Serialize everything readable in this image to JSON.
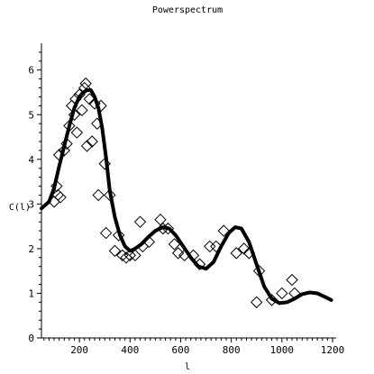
{
  "chart_data": {
    "type": "scatter",
    "title": "Powerspectrum",
    "xlabel": "l",
    "ylabel": "C(l)",
    "xlim": [
      50,
      1200
    ],
    "ylim": [
      0,
      6.6
    ],
    "x_ticks": [
      200,
      400,
      600,
      800,
      1000,
      1200
    ],
    "y_ticks": [
      0,
      1,
      2,
      3,
      4,
      5,
      6
    ],
    "grid": false,
    "legend": "none",
    "series": [
      {
        "kind": "points",
        "marker": "diamond",
        "points": [
          [
            100,
            3.05
          ],
          [
            110,
            3.4
          ],
          [
            115,
            3.2
          ],
          [
            120,
            4.1
          ],
          [
            125,
            3.15
          ],
          [
            140,
            4.2
          ],
          [
            150,
            4.35
          ],
          [
            160,
            4.75
          ],
          [
            170,
            5.2
          ],
          [
            180,
            5.0
          ],
          [
            185,
            5.35
          ],
          [
            190,
            4.6
          ],
          [
            200,
            5.45
          ],
          [
            210,
            5.1
          ],
          [
            220,
            5.6
          ],
          [
            225,
            5.7
          ],
          [
            230,
            4.3
          ],
          [
            240,
            5.35
          ],
          [
            250,
            4.4
          ],
          [
            260,
            5.25
          ],
          [
            270,
            4.8
          ],
          [
            275,
            3.2
          ],
          [
            285,
            5.2
          ],
          [
            300,
            3.9
          ],
          [
            305,
            2.35
          ],
          [
            320,
            3.2
          ],
          [
            340,
            1.95
          ],
          [
            355,
            2.3
          ],
          [
            370,
            1.85
          ],
          [
            385,
            1.8
          ],
          [
            400,
            1.85
          ],
          [
            420,
            1.85
          ],
          [
            440,
            2.6
          ],
          [
            450,
            2.05
          ],
          [
            475,
            2.15
          ],
          [
            520,
            2.65
          ],
          [
            530,
            2.45
          ],
          [
            550,
            2.45
          ],
          [
            575,
            2.1
          ],
          [
            590,
            1.9
          ],
          [
            615,
            1.85
          ],
          [
            650,
            1.85
          ],
          [
            675,
            1.65
          ],
          [
            715,
            2.05
          ],
          [
            740,
            2.05
          ],
          [
            770,
            2.4
          ],
          [
            820,
            1.9
          ],
          [
            850,
            2.0
          ],
          [
            870,
            1.9
          ],
          [
            900,
            0.8
          ],
          [
            910,
            1.5
          ],
          [
            960,
            0.85
          ],
          [
            1000,
            1.0
          ],
          [
            1040,
            1.3
          ],
          [
            1050,
            1.0
          ]
        ]
      },
      {
        "kind": "curve",
        "points": [
          [
            50,
            2.9
          ],
          [
            80,
            3.05
          ],
          [
            100,
            3.35
          ],
          [
            120,
            3.85
          ],
          [
            140,
            4.3
          ],
          [
            160,
            4.75
          ],
          [
            180,
            5.15
          ],
          [
            200,
            5.4
          ],
          [
            215,
            5.5
          ],
          [
            230,
            5.55
          ],
          [
            245,
            5.55
          ],
          [
            260,
            5.4
          ],
          [
            275,
            5.15
          ],
          [
            290,
            4.7
          ],
          [
            305,
            4.05
          ],
          [
            320,
            3.3
          ],
          [
            340,
            2.7
          ],
          [
            360,
            2.3
          ],
          [
            380,
            2.05
          ],
          [
            400,
            1.95
          ],
          [
            420,
            2.0
          ],
          [
            445,
            2.1
          ],
          [
            470,
            2.25
          ],
          [
            500,
            2.4
          ],
          [
            530,
            2.48
          ],
          [
            555,
            2.45
          ],
          [
            580,
            2.3
          ],
          [
            610,
            2.05
          ],
          [
            640,
            1.8
          ],
          [
            670,
            1.6
          ],
          [
            700,
            1.55
          ],
          [
            730,
            1.7
          ],
          [
            760,
            2.05
          ],
          [
            790,
            2.35
          ],
          [
            815,
            2.48
          ],
          [
            840,
            2.45
          ],
          [
            870,
            2.15
          ],
          [
            900,
            1.65
          ],
          [
            930,
            1.15
          ],
          [
            960,
            0.88
          ],
          [
            990,
            0.78
          ],
          [
            1020,
            0.8
          ],
          [
            1050,
            0.88
          ],
          [
            1080,
            0.98
          ],
          [
            1110,
            1.02
          ],
          [
            1140,
            1.0
          ],
          [
            1170,
            0.92
          ],
          [
            1195,
            0.85
          ]
        ]
      }
    ]
  }
}
